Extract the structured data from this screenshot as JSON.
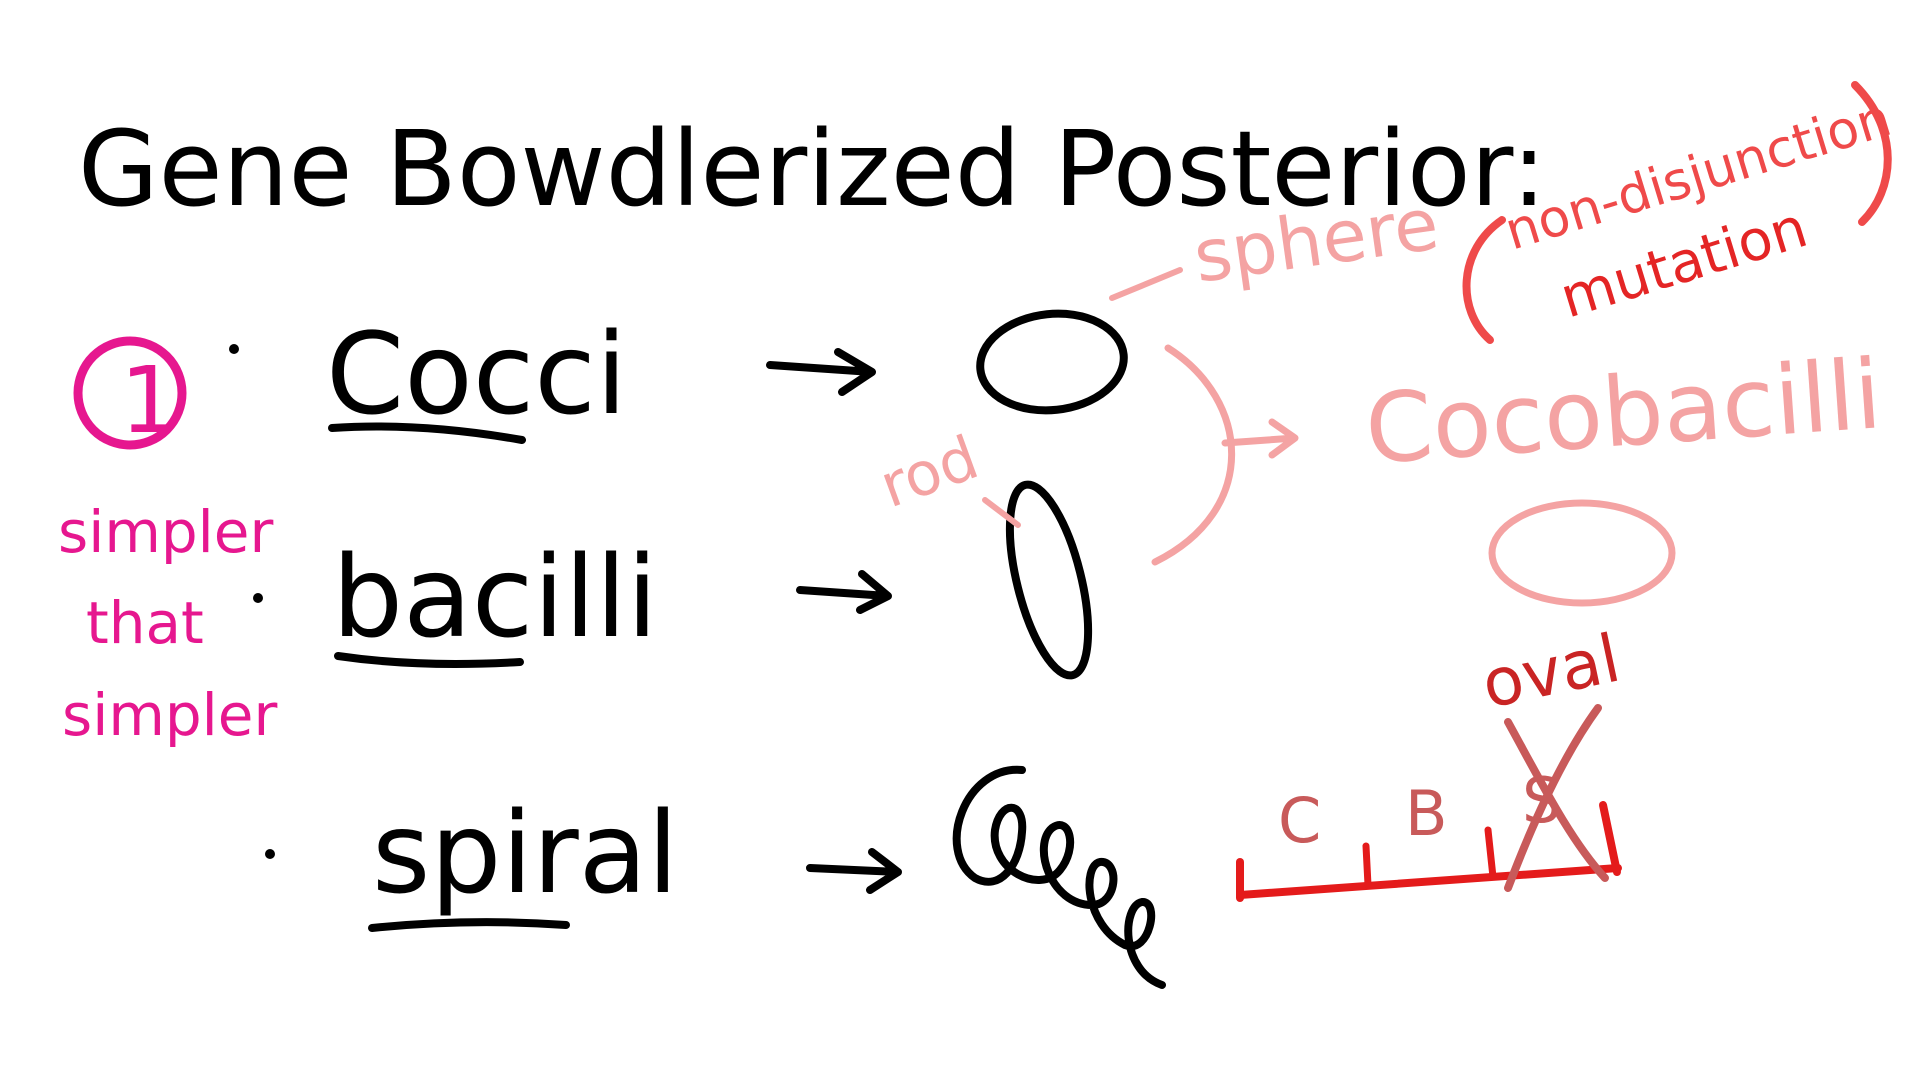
{
  "title": "Gene Bowdlerized Posterior:",
  "step_number": "1",
  "note": {
    "line1": "simpler",
    "line2": "that",
    "line3": "simpler"
  },
  "terms": [
    {
      "label": "Cocci"
    },
    {
      "label": "bacilli"
    },
    {
      "label": "spiral"
    }
  ],
  "annotations": {
    "sphere": "sphere",
    "rod": "rod",
    "cocobacilli": "Cocobacilli",
    "oval": "oval",
    "mutation_line1": "non-disjunction",
    "mutation_line2": "mutation"
  },
  "scale": {
    "ticks": [
      "C",
      "B",
      "S"
    ]
  },
  "colors": {
    "ink": "#000000",
    "magenta": "#e6178f",
    "pink": "#f4a3a3",
    "red": "#e41b1b",
    "coral": "#ef4a4a",
    "dark_red": "#c92424",
    "muted_red": "#c85a5a"
  }
}
